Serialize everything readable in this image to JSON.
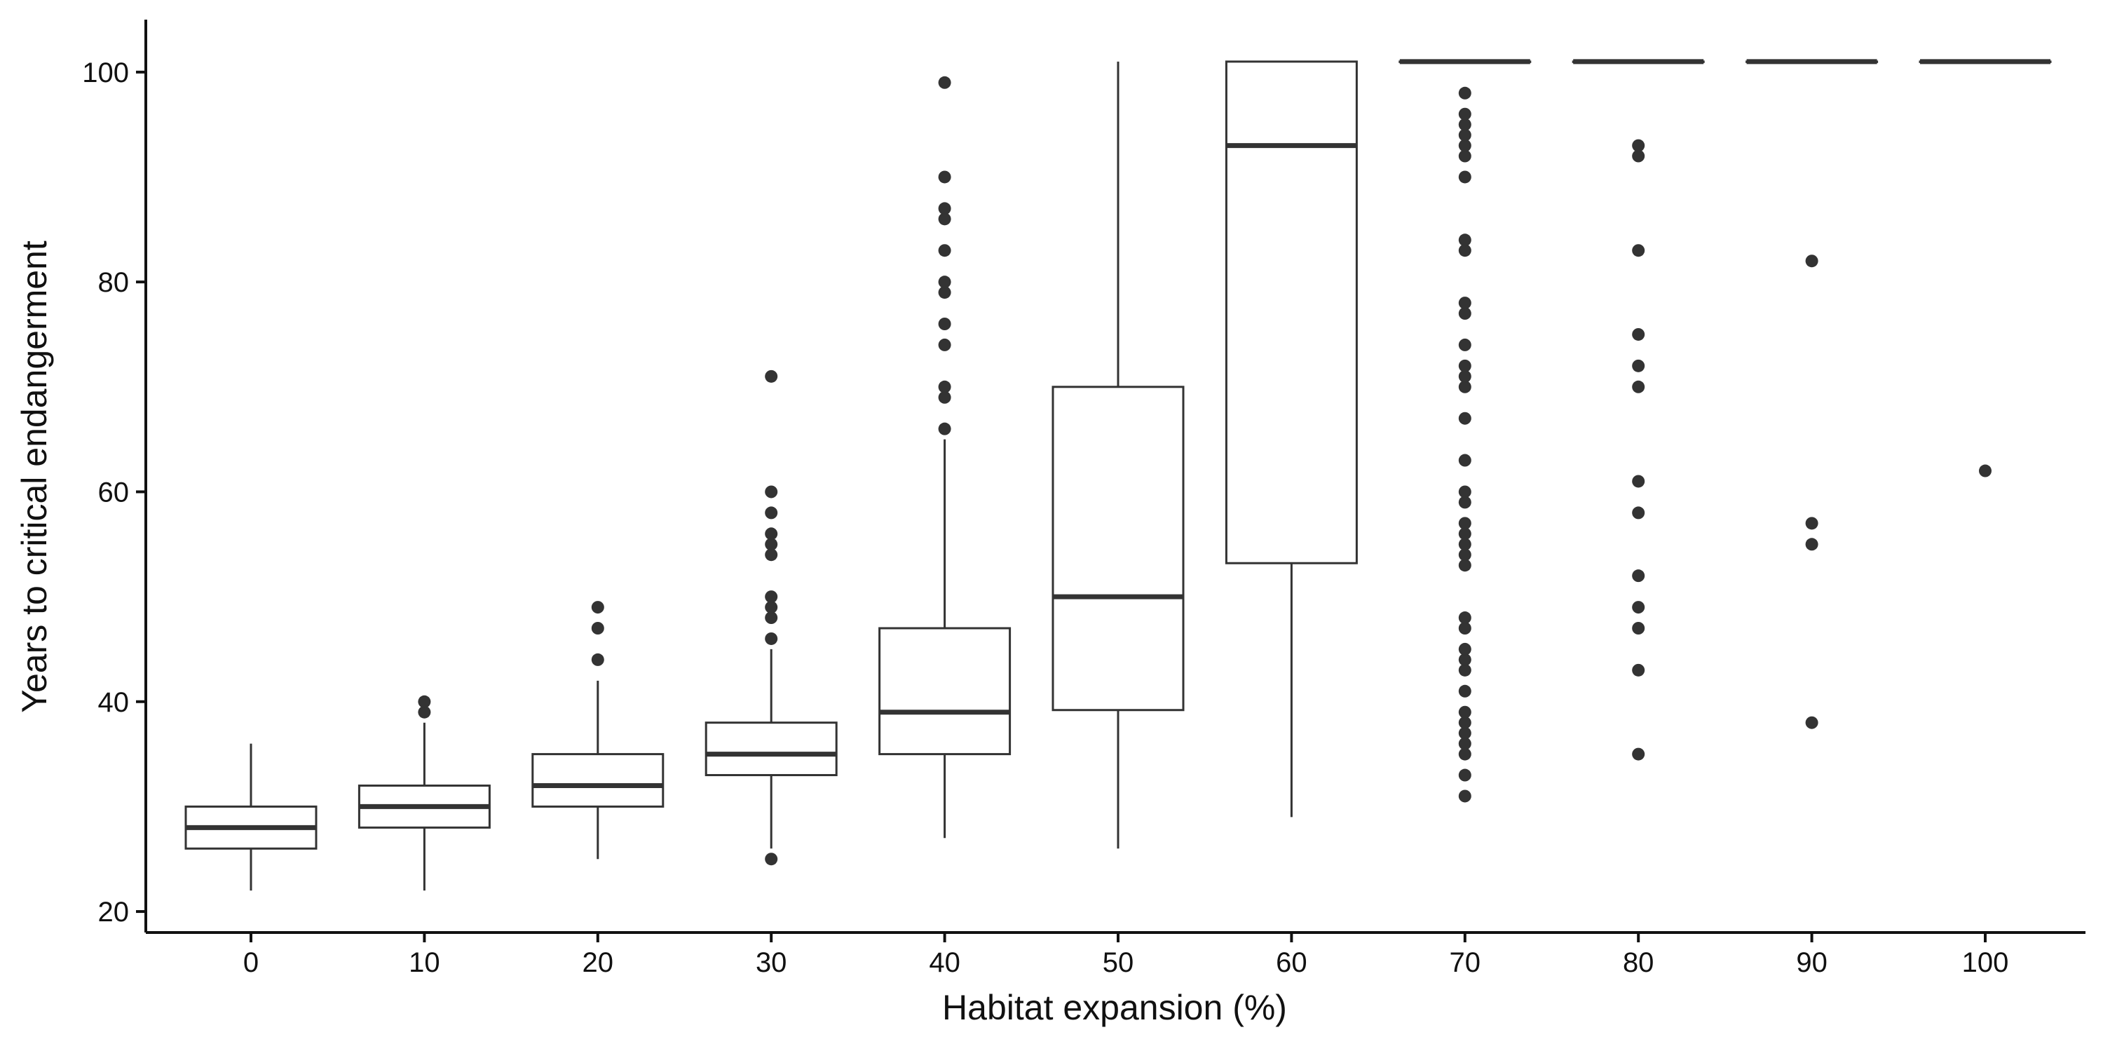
{
  "chart_data": {
    "type": "boxplot",
    "title": "",
    "xlabel": "Habitat expansion (%)",
    "ylabel": "Years to critical endangerment",
    "ylim": [
      18,
      105
    ],
    "yticks": [
      20,
      40,
      60,
      80,
      100
    ],
    "grid": false,
    "legend": "none",
    "color": "#333333",
    "categories": [
      "0",
      "10",
      "20",
      "30",
      "40",
      "50",
      "60",
      "70",
      "80",
      "90",
      "100"
    ],
    "boxes": [
      {
        "category": "0",
        "lower_whisker": 22,
        "q1": 26,
        "median": 28,
        "q3": 30,
        "upper_whisker": 36,
        "outliers": []
      },
      {
        "category": "10",
        "lower_whisker": 22,
        "q1": 28,
        "median": 30,
        "q3": 32,
        "upper_whisker": 38,
        "outliers": [
          39,
          40
        ]
      },
      {
        "category": "20",
        "lower_whisker": 25,
        "q1": 30,
        "median": 32,
        "q3": 35,
        "upper_whisker": 42,
        "outliers": [
          44,
          47,
          49
        ]
      },
      {
        "category": "30",
        "lower_whisker": 26,
        "q1": 33,
        "median": 35,
        "q3": 38,
        "upper_whisker": 45,
        "outliers": [
          25,
          46,
          48,
          49,
          50,
          54,
          55,
          56,
          58,
          60,
          71
        ]
      },
      {
        "category": "40",
        "lower_whisker": 27,
        "q1": 35,
        "median": 39,
        "q3": 47,
        "upper_whisker": 65,
        "outliers": [
          66,
          69,
          70,
          74,
          76,
          79,
          80,
          83,
          86,
          87,
          90,
          99
        ]
      },
      {
        "category": "50",
        "lower_whisker": 26,
        "q1": 39.2,
        "median": 50,
        "q3": 70,
        "upper_whisker": 101,
        "outliers": []
      },
      {
        "category": "60",
        "lower_whisker": 29,
        "q1": 53.2,
        "median": 93,
        "q3": 101,
        "upper_whisker": 101,
        "outliers": []
      },
      {
        "category": "70",
        "lower_whisker": 101,
        "q1": 101,
        "median": 101,
        "q3": 101,
        "upper_whisker": 101,
        "outliers": [
          31,
          33,
          35,
          36,
          37,
          38,
          39,
          41,
          43,
          44,
          45,
          47,
          48,
          53,
          54,
          55,
          56,
          57,
          59,
          60,
          63,
          67,
          70,
          71,
          72,
          74,
          77,
          78,
          83,
          84,
          90,
          92,
          93,
          94,
          95,
          96,
          98
        ]
      },
      {
        "category": "80",
        "lower_whisker": 101,
        "q1": 101,
        "median": 101,
        "q3": 101,
        "upper_whisker": 101,
        "outliers": [
          35,
          43,
          47,
          49,
          52,
          58,
          61,
          70,
          72,
          75,
          83,
          92,
          93
        ]
      },
      {
        "category": "90",
        "lower_whisker": 101,
        "q1": 101,
        "median": 101,
        "q3": 101,
        "upper_whisker": 101,
        "outliers": [
          38,
          55,
          57,
          82
        ]
      },
      {
        "category": "100",
        "lower_whisker": 101,
        "q1": 101,
        "median": 101,
        "q3": 101,
        "upper_whisker": 101,
        "outliers": [
          62
        ]
      }
    ]
  }
}
